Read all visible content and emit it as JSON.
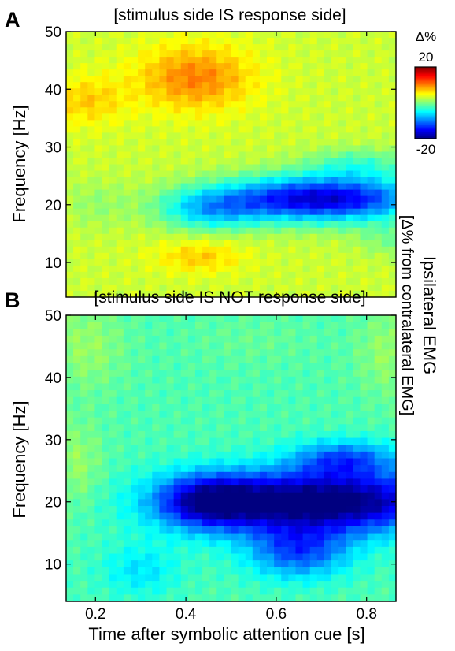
{
  "chart_data": [
    {
      "type": "heatmap",
      "panel_label": "A",
      "title": "[stimulus side IS response side]",
      "ylabel": "Frequency [Hz]",
      "xlabel": "",
      "xlim": [
        0.135,
        0.865
      ],
      "ylim": [
        4,
        50
      ],
      "x_ticks": [
        "0.2",
        "0.4",
        "0.6",
        "0.8"
      ],
      "x_tick_values": [
        0.2,
        0.4,
        0.6,
        0.8
      ],
      "y_ticks": [
        "10",
        "20",
        "30",
        "40",
        "50"
      ],
      "y_tick_values": [
        10,
        20,
        30,
        40,
        50
      ],
      "z_range": [
        -20,
        20
      ],
      "background_value": 3,
      "features": [
        {
          "t": 0.42,
          "f": 42,
          "amp": 7,
          "sx": 0.09,
          "sy": 4
        },
        {
          "t": 0.18,
          "f": 38,
          "amp": 4,
          "sx": 0.06,
          "sy": 3
        },
        {
          "t": 0.43,
          "f": 11,
          "amp": 4,
          "sx": 0.07,
          "sy": 2
        },
        {
          "t": 0.7,
          "f": 21,
          "amp": -20,
          "sx": 0.16,
          "sy": 2.8
        },
        {
          "t": 0.45,
          "f": 19,
          "amp": -8,
          "sx": 0.08,
          "sy": 2.5
        },
        {
          "t": 0.78,
          "f": 27,
          "amp": -5,
          "sx": 0.08,
          "sy": 2
        },
        {
          "t": 0.85,
          "f": 14,
          "amp": -3,
          "sx": 0.05,
          "sy": 2
        },
        {
          "t": 0.2,
          "f": 20,
          "amp": -2,
          "sx": 0.05,
          "sy": 3
        }
      ]
    },
    {
      "type": "heatmap",
      "panel_label": "B",
      "title": "[stimulus side IS NOT response side]",
      "ylabel": "Frequency [Hz]",
      "xlabel": "Time after symbolic attention cue [s]",
      "xlim": [
        0.135,
        0.865
      ],
      "ylim": [
        4,
        50
      ],
      "x_ticks": [
        "0.2",
        "0.4",
        "0.6",
        "0.8"
      ],
      "x_tick_values": [
        0.2,
        0.4,
        0.6,
        0.8
      ],
      "y_ticks": [
        "10",
        "20",
        "30",
        "40",
        "50"
      ],
      "y_tick_values": [
        10,
        20,
        30,
        40,
        50
      ],
      "z_range": [
        -20,
        20
      ],
      "background_value": -2,
      "features": [
        {
          "t": 0.7,
          "f": 20,
          "amp": -20,
          "sx": 0.2,
          "sy": 3.5
        },
        {
          "t": 0.45,
          "f": 20,
          "amp": -12,
          "sx": 0.08,
          "sy": 3
        },
        {
          "t": 0.65,
          "f": 12,
          "amp": -10,
          "sx": 0.08,
          "sy": 3
        },
        {
          "t": 0.75,
          "f": 27,
          "amp": -9,
          "sx": 0.08,
          "sy": 2
        },
        {
          "t": 0.3,
          "f": 9,
          "amp": -4,
          "sx": 0.06,
          "sy": 3
        },
        {
          "t": 0.16,
          "f": 26,
          "amp": 3,
          "sx": 0.04,
          "sy": 5
        },
        {
          "t": 0.18,
          "f": 45,
          "amp": 3,
          "sx": 0.06,
          "sy": 5
        },
        {
          "t": 0.85,
          "f": 44,
          "amp": 3,
          "sx": 0.05,
          "sy": 5
        },
        {
          "t": 0.55,
          "f": 46,
          "amp": 1,
          "sx": 0.1,
          "sy": 3
        }
      ]
    }
  ],
  "colorbar": {
    "label": "Δ%",
    "max_label": "20",
    "min_label": "-20",
    "range": [
      -20,
      20
    ]
  },
  "side_label": {
    "line1": "Ipsilateral EMG",
    "line2": "[Δ% from contralateral EMG]"
  }
}
